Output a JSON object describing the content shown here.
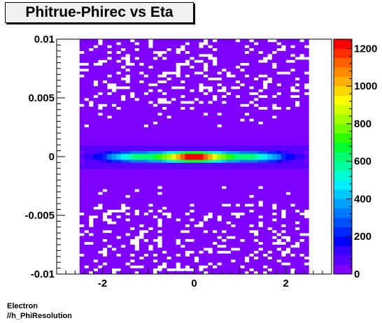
{
  "title": "Phitrue-Phirec vs Eta",
  "captions": {
    "line1": "Electron",
    "line2": "//h_PhiResolution"
  },
  "chart_data": {
    "type": "heatmap",
    "title": "Phitrue-Phirec vs Eta",
    "xlabel": "",
    "ylabel": "",
    "xlim": [
      -3.0,
      3.0
    ],
    "ylim": [
      -0.01,
      0.01
    ],
    "xticks": [
      -2,
      0,
      2
    ],
    "xtick_labels": [
      "-2",
      "0",
      "2"
    ],
    "yticks": [
      -0.01,
      -0.005,
      0,
      0.005,
      0.01
    ],
    "ytick_labels": [
      "-0.01",
      "-0.005",
      "0",
      "0.005",
      "0.01"
    ],
    "zlim": [
      0,
      1250
    ],
    "zticks": [
      0,
      200,
      400,
      600,
      800,
      1000,
      1200
    ],
    "ztick_labels": [
      "0",
      "200",
      "400",
      "600",
      "800",
      "1000",
      "1200"
    ],
    "x_range_filled": [
      -2.5,
      2.5
    ],
    "core_band": {
      "y_center": 0.0,
      "y_halfwidth": 0.0005,
      "peak_value": 1250
    },
    "background_level": 5,
    "palette": [
      "#7f00ff",
      "#5a00ff",
      "#3a00ff",
      "#0000ff",
      "#0028ff",
      "#0050ff",
      "#0078ff",
      "#00a0ff",
      "#00c8ff",
      "#00f0ff",
      "#00ffd0",
      "#00ffa0",
      "#00ff70",
      "#00ff30",
      "#30ff00",
      "#70ff00",
      "#a0ff00",
      "#d0ff00",
      "#ffff00",
      "#ffd700",
      "#ffb000",
      "#ff8c00",
      "#ff6000",
      "#ff3000",
      "#ff0000"
    ],
    "grid": false,
    "legend": "colorbar-right"
  }
}
